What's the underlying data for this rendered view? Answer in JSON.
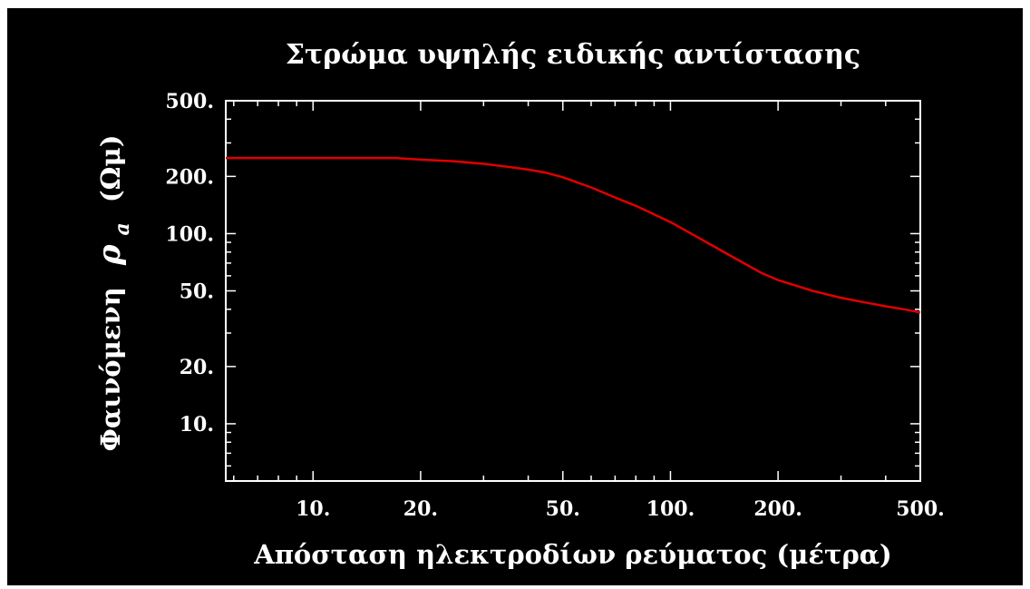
{
  "chart_data": {
    "type": "line",
    "title": "Στρώμα υψηλής ειδικής αντίστασης",
    "xlabel": "Απόσταση ηλεκτροδίων ρεύματος (μέτρα)",
    "ylabel": {
      "prefix": "Φαινόμενη",
      "symbol": "ρ",
      "subscript": "a",
      "unit": "(Ωμ)"
    },
    "x_scale": "log",
    "y_scale": "log",
    "xlim": [
      5.7,
      500
    ],
    "ylim": [
      5,
      500
    ],
    "x_ticks": [
      {
        "value": 10,
        "label": "10."
      },
      {
        "value": 20,
        "label": "20."
      },
      {
        "value": 50,
        "label": "50."
      },
      {
        "value": 100,
        "label": "100."
      },
      {
        "value": 200,
        "label": "200."
      },
      {
        "value": 500,
        "label": "500."
      }
    ],
    "y_ticks": [
      {
        "value": 10,
        "label": "10."
      },
      {
        "value": 20,
        "label": "20."
      },
      {
        "value": 50,
        "label": "50."
      },
      {
        "value": 100,
        "label": "100."
      },
      {
        "value": 200,
        "label": "200."
      },
      {
        "value": 500,
        "label": "500."
      }
    ],
    "grid": false,
    "series": [
      {
        "color": "#e00000",
        "x": [
          5.7,
          10,
          17,
          20,
          25,
          30,
          35,
          40,
          45,
          50,
          60,
          70,
          80,
          100,
          120,
          150,
          180,
          200,
          250,
          300,
          350,
          400,
          450,
          500
        ],
        "y": [
          250,
          250,
          250,
          245,
          240,
          233,
          225,
          217,
          209,
          198,
          175,
          155,
          140,
          115,
          95,
          75,
          62,
          57,
          50,
          46,
          43.5,
          41.5,
          40,
          38.5
        ]
      }
    ]
  }
}
